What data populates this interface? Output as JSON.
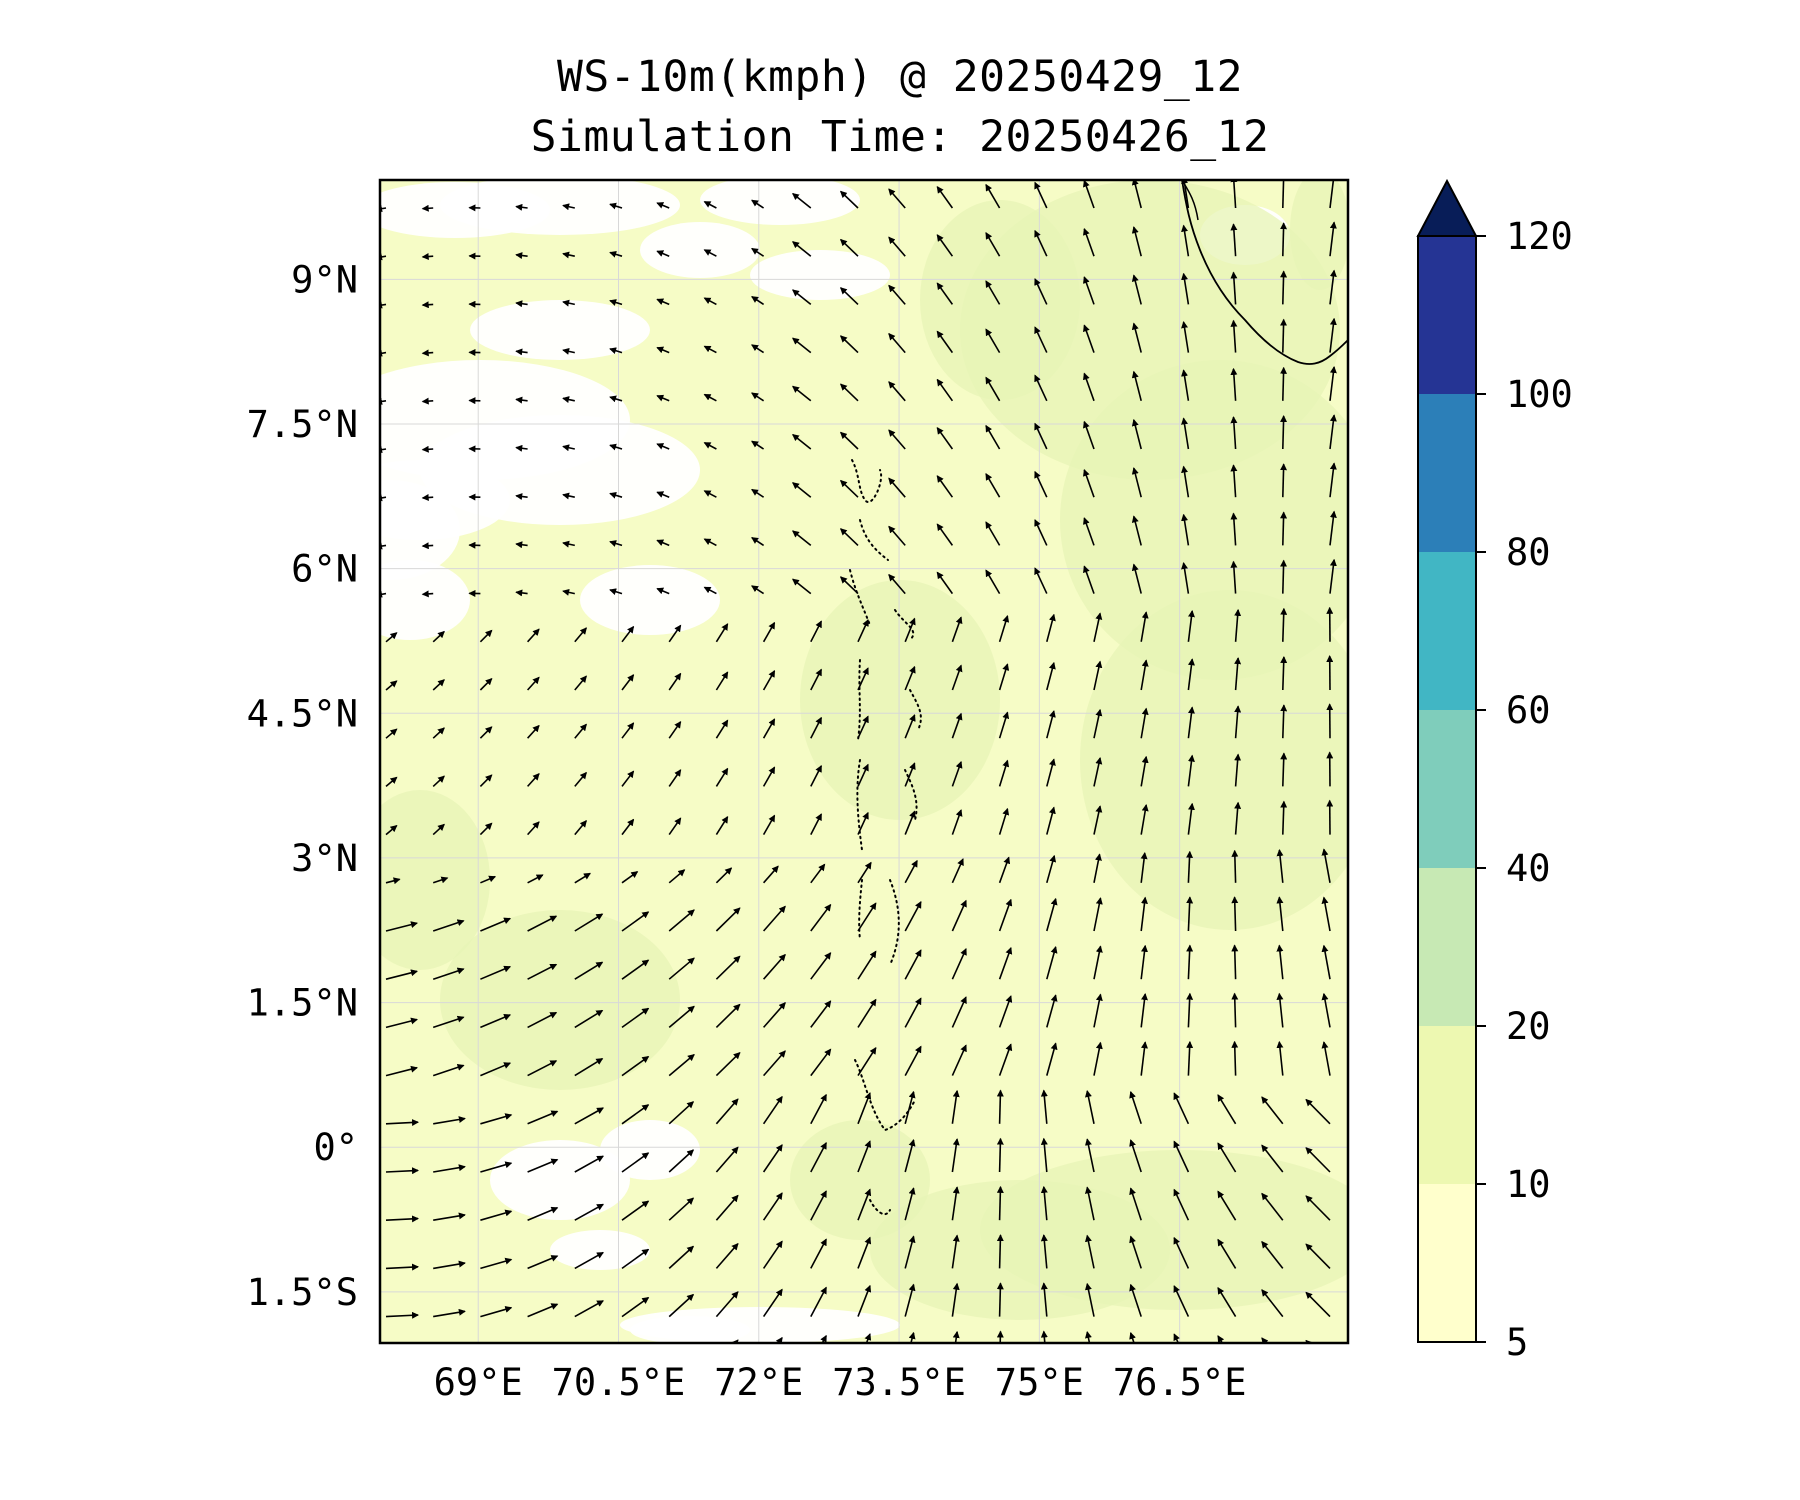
{
  "title": "WS-10m(kmph) @ 20250429_12",
  "subtitle": "Simulation Time: 20250426_12",
  "map": {
    "lon_range": [
      67.95,
      78.3
    ],
    "lat_range": [
      -2.03,
      10.03
    ],
    "lon_ticks": [
      {
        "value": 69,
        "label": "69°E"
      },
      {
        "value": 70.5,
        "label": "70.5°E"
      },
      {
        "value": 72,
        "label": "72°E"
      },
      {
        "value": 73.5,
        "label": "73.5°E"
      },
      {
        "value": 75,
        "label": "75°E"
      },
      {
        "value": 76.5,
        "label": "76.5°E"
      }
    ],
    "lat_ticks": [
      {
        "value": 9,
        "label": "9°N"
      },
      {
        "value": 7.5,
        "label": "7.5°N"
      },
      {
        "value": 6,
        "label": "6°N"
      },
      {
        "value": 4.5,
        "label": "4.5°N"
      },
      {
        "value": 3,
        "label": "3°N"
      },
      {
        "value": 1.5,
        "label": "1.5°N"
      },
      {
        "value": 0,
        "label": "0°"
      },
      {
        "value": -1.5,
        "label": "1.5°S"
      }
    ],
    "gridlines": true,
    "background_color": "#f6fcc6",
    "quiet_wind_color": "#ffffff",
    "breezy_wind_color": "#e7f4b5",
    "coastline": "Sri Lanka (top-right)",
    "islands": "Maldives atolls (dotted)"
  },
  "colorbar": {
    "levels": [
      5,
      10,
      20,
      40,
      60,
      80,
      100,
      120
    ],
    "colors": [
      "#ffffcc",
      "#edf8b1",
      "#c7e9b4",
      "#7fcdbb",
      "#41b6c4",
      "#2c7fb8",
      "#253494"
    ],
    "extend_color": "#081d58",
    "extend": "max",
    "tick_labels": [
      "5",
      "10",
      "20",
      "40",
      "60",
      "80",
      "100",
      "120"
    ]
  },
  "vector_field": {
    "description": "10 m wind vectors",
    "arrow_color": "#000000"
  }
}
